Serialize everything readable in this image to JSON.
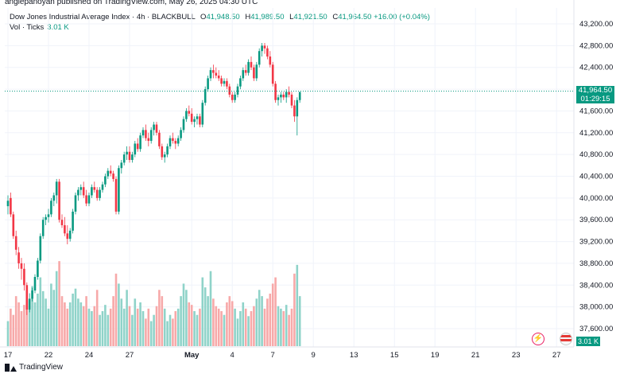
{
  "header": {
    "published_line": "anglepanoyan published on TradingView.com, May 26, 2025 04:30 UTC"
  },
  "legend": {
    "symbol": "Dow Jones Industrial Average Index · 4h · BLACKBULL",
    "o_label": "O",
    "o_value": "41,948.50",
    "h_label": "H",
    "h_value": "41,989.50",
    "l_label": "L",
    "l_value": "41,921.50",
    "c_label": "C",
    "c_value": "41,964.50",
    "change": "+16.00 (+0.04%)",
    "vol_label": "Vol · Ticks",
    "vol_value": "3.01 K"
  },
  "price_tag": {
    "price": "41,964.50",
    "countdown": "01:29:15"
  },
  "volume_tag": "3.01 K",
  "footer": {
    "brand": "TradingView"
  },
  "events": {
    "dividend_icon": "lightning-bolt-icon",
    "flag_icon": "us-flag-icon"
  },
  "colors": {
    "up": "#089981",
    "down": "#f23645",
    "up_vol": "#8fd3c9",
    "down_vol": "#f7a9a9"
  },
  "chart_data": {
    "type": "candlestick",
    "y_ticks": [
      "43,200.00",
      "42,800.00",
      "42,400.00",
      "42,000.00",
      "41,600.00",
      "41,200.00",
      "40,800.00",
      "40,400.00",
      "40,000.00",
      "39,600.00",
      "39,200.00",
      "38,800.00",
      "38,400.00",
      "38,000.00",
      "37,600.00"
    ],
    "y_tick_values": [
      43200,
      42800,
      42400,
      42000,
      41600,
      41200,
      40800,
      40400,
      40000,
      39600,
      39200,
      38800,
      38400,
      38000,
      37600
    ],
    "x_ticks": [
      {
        "label": "17",
        "bar": 0
      },
      {
        "label": "22",
        "bar": 15
      },
      {
        "label": "24",
        "bar": 30
      },
      {
        "label": "27",
        "bar": 45
      },
      {
        "label": "May",
        "bar": 68
      },
      {
        "label": "4",
        "bar": 83
      },
      {
        "label": "7",
        "bar": 98
      },
      {
        "label": "9",
        "bar": 113
      },
      {
        "label": "13",
        "bar": 128
      },
      {
        "label": "15",
        "bar": 143
      },
      {
        "label": "19",
        "bar": 158
      },
      {
        "label": "21",
        "bar": 173
      },
      {
        "label": "23",
        "bar": 188
      },
      {
        "label": "27",
        "bar": 203
      }
    ],
    "last_price": 41964.5,
    "ohlc_volume": [
      [
        39850,
        40050,
        39700,
        39950,
        20
      ],
      [
        40000,
        40100,
        39650,
        39700,
        30
      ],
      [
        39700,
        39750,
        39250,
        39300,
        25
      ],
      [
        39300,
        39400,
        38950,
        39050,
        40
      ],
      [
        39000,
        39100,
        38700,
        38800,
        35
      ],
      [
        38800,
        38900,
        38500,
        38700,
        28
      ],
      [
        38700,
        38800,
        38300,
        38400,
        33
      ],
      [
        38400,
        38450,
        37850,
        37950,
        47
      ],
      [
        37950,
        38250,
        37900,
        38150,
        36
      ],
      [
        38150,
        38350,
        38100,
        38300,
        48
      ],
      [
        38300,
        38600,
        38250,
        38550,
        35
      ],
      [
        38550,
        38900,
        38500,
        38850,
        42
      ],
      [
        38850,
        39350,
        38800,
        39300,
        55
      ],
      [
        39300,
        39650,
        39250,
        39600,
        44
      ],
      [
        39600,
        39700,
        39500,
        39650,
        38
      ],
      [
        39650,
        39800,
        39550,
        39700,
        30
      ],
      [
        39700,
        40000,
        39650,
        39950,
        50
      ],
      [
        39950,
        40100,
        39850,
        40050,
        45
      ],
      [
        40050,
        40350,
        39900,
        40300,
        60
      ],
      [
        40300,
        40350,
        39550,
        39600,
        68
      ],
      [
        39600,
        39700,
        39450,
        39500,
        40
      ],
      [
        39500,
        39650,
        39300,
        39350,
        35
      ],
      [
        39350,
        39500,
        39150,
        39250,
        30
      ],
      [
        39250,
        39450,
        39200,
        39400,
        35
      ],
      [
        39400,
        39800,
        39350,
        39750,
        42
      ],
      [
        39750,
        40100,
        39700,
        40050,
        46
      ],
      [
        40050,
        40200,
        39950,
        40150,
        38
      ],
      [
        40150,
        40250,
        40050,
        40200,
        35
      ],
      [
        40200,
        40300,
        40000,
        40050,
        32
      ],
      [
        40050,
        40150,
        39850,
        39900,
        40
      ],
      [
        39900,
        40100,
        39850,
        40050,
        30
      ],
      [
        40050,
        40250,
        40000,
        40200,
        28
      ],
      [
        40200,
        40300,
        40100,
        40150,
        32
      ],
      [
        40150,
        40200,
        39950,
        40000,
        45
      ],
      [
        40000,
        40200,
        39950,
        40150,
        25
      ],
      [
        40150,
        40300,
        40100,
        40250,
        28
      ],
      [
        40250,
        40450,
        40200,
        40400,
        33
      ],
      [
        40400,
        40550,
        40350,
        40500,
        25
      ],
      [
        40500,
        40600,
        40400,
        40450,
        30
      ],
      [
        40450,
        40500,
        40300,
        40350,
        40
      ],
      [
        40350,
        40400,
        39700,
        39750,
        58
      ],
      [
        39750,
        40600,
        39700,
        40550,
        50
      ],
      [
        40550,
        40700,
        40450,
        40650,
        38
      ],
      [
        40650,
        40850,
        40600,
        40800,
        30
      ],
      [
        40800,
        40950,
        40700,
        40850,
        45
      ],
      [
        40850,
        40950,
        40650,
        40700,
        32
      ],
      [
        40700,
        40850,
        40650,
        40800,
        25
      ],
      [
        40800,
        41050,
        40750,
        41000,
        38
      ],
      [
        41000,
        41100,
        40850,
        40900,
        30
      ],
      [
        40900,
        41200,
        40850,
        41150,
        35
      ],
      [
        41150,
        41300,
        41100,
        41250,
        28
      ],
      [
        41250,
        41350,
        41050,
        41100,
        22
      ],
      [
        41100,
        41200,
        40950,
        41050,
        30
      ],
      [
        41050,
        41300,
        41000,
        41250,
        20
      ],
      [
        41250,
        41400,
        41150,
        41350,
        25
      ],
      [
        41350,
        41400,
        41150,
        41200,
        32
      ],
      [
        41200,
        41250,
        40900,
        40950,
        45
      ],
      [
        40950,
        41000,
        40700,
        40750,
        40
      ],
      [
        40750,
        40850,
        40650,
        40800,
        30
      ],
      [
        40800,
        41000,
        40750,
        40950,
        20
      ],
      [
        40950,
        41150,
        40900,
        41100,
        25
      ],
      [
        41100,
        41200,
        41000,
        41050,
        22
      ],
      [
        41050,
        41100,
        40900,
        41000,
        28
      ],
      [
        41000,
        41150,
        40950,
        41100,
        30
      ],
      [
        41100,
        41300,
        41050,
        41250,
        40
      ],
      [
        41250,
        41500,
        41200,
        41450,
        50
      ],
      [
        41450,
        41650,
        41400,
        41600,
        45
      ],
      [
        41600,
        41700,
        41500,
        41550,
        35
      ],
      [
        41550,
        41650,
        41350,
        41400,
        33
      ],
      [
        41400,
        41500,
        41300,
        41450,
        28
      ],
      [
        41450,
        41550,
        41350,
        41500,
        25
      ],
      [
        41500,
        41550,
        41300,
        41350,
        30
      ],
      [
        41350,
        41800,
        41300,
        41750,
        55
      ],
      [
        41750,
        42050,
        41700,
        42000,
        47
      ],
      [
        42000,
        42250,
        41950,
        42200,
        40
      ],
      [
        42200,
        42400,
        42150,
        42350,
        60
      ],
      [
        42350,
        42450,
        42200,
        42300,
        38
      ],
      [
        42300,
        42400,
        42200,
        42250,
        32
      ],
      [
        42250,
        42350,
        42150,
        42200,
        30
      ],
      [
        42200,
        42250,
        42050,
        42100,
        28
      ],
      [
        42100,
        42200,
        42050,
        42150,
        25
      ],
      [
        42150,
        42200,
        42000,
        42050,
        35
      ],
      [
        42050,
        42100,
        41850,
        41900,
        40
      ],
      [
        41900,
        41950,
        41750,
        41800,
        36
      ],
      [
        41800,
        41950,
        41750,
        41900,
        30
      ],
      [
        41900,
        42100,
        41850,
        42050,
        22
      ],
      [
        42050,
        42250,
        42000,
        42200,
        28
      ],
      [
        42200,
        42400,
        42150,
        42350,
        35
      ],
      [
        42350,
        42450,
        42250,
        42300,
        30
      ],
      [
        42300,
        42550,
        42250,
        42500,
        24
      ],
      [
        42500,
        42600,
        42350,
        42400,
        28
      ],
      [
        42400,
        42450,
        42150,
        42200,
        32
      ],
      [
        42200,
        42500,
        42150,
        42450,
        38
      ],
      [
        42450,
        42750,
        42400,
        42700,
        45
      ],
      [
        42700,
        42850,
        42600,
        42800,
        40
      ],
      [
        42800,
        42850,
        42650,
        42750,
        30
      ],
      [
        42750,
        42800,
        42550,
        42600,
        38
      ],
      [
        42600,
        42700,
        42400,
        42450,
        42
      ],
      [
        42450,
        42500,
        42050,
        42100,
        50
      ],
      [
        42100,
        42150,
        41750,
        41800,
        55
      ],
      [
        41800,
        41900,
        41700,
        41850,
        32
      ],
      [
        41850,
        41950,
        41750,
        41900,
        30
      ],
      [
        41900,
        41950,
        41800,
        41850,
        28
      ],
      [
        41850,
        42000,
        41750,
        41950,
        33
      ],
      [
        41950,
        42050,
        41850,
        41900,
        25
      ],
      [
        41900,
        41950,
        41650,
        41700,
        30
      ],
      [
        41700,
        41800,
        41400,
        41500,
        58
      ],
      [
        41500,
        41850,
        41150,
        41800,
        65
      ],
      [
        41800,
        41950,
        41750,
        41950,
        40
      ]
    ]
  }
}
